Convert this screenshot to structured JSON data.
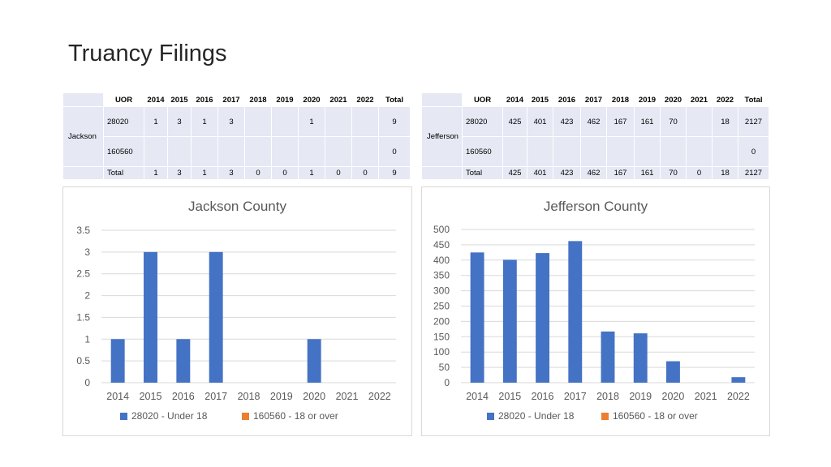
{
  "title": "Truancy Filings",
  "tables": {
    "jackson": {
      "county": "Jackson",
      "headers": [
        "UOR",
        "2014",
        "2015",
        "2016",
        "2017",
        "2018",
        "2019",
        "2020",
        "2021",
        "2022",
        "Total"
      ],
      "rows": [
        {
          "uor": "28020",
          "cells": [
            "1",
            "3",
            "1",
            "3",
            "",
            "",
            "1",
            "",
            "",
            "9"
          ]
        },
        {
          "uor": "160560",
          "cells": [
            "",
            "",
            "",
            "",
            "",
            "",
            "",
            "",
            "",
            "0"
          ]
        }
      ],
      "total_row": {
        "label": "Total",
        "cells": [
          "1",
          "3",
          "1",
          "3",
          "0",
          "0",
          "1",
          "0",
          "0",
          "9"
        ]
      }
    },
    "jefferson": {
      "county": "Jefferson",
      "headers": [
        "UOR",
        "2014",
        "2015",
        "2016",
        "2017",
        "2018",
        "2019",
        "2020",
        "2021",
        "2022",
        "Total"
      ],
      "rows": [
        {
          "uor": "28020",
          "cells": [
            "425",
            "401",
            "423",
            "462",
            "167",
            "161",
            "70",
            "",
            "18",
            "2127"
          ]
        },
        {
          "uor": "160560",
          "cells": [
            "",
            "",
            "",
            "",
            "",
            "",
            "",
            "",
            "",
            "0"
          ]
        }
      ],
      "total_row": {
        "label": "Total",
        "cells": [
          "425",
          "401",
          "423",
          "462",
          "167",
          "161",
          "70",
          "0",
          "18",
          "2127"
        ]
      }
    }
  },
  "colors": {
    "series_1": "#4472c4",
    "series_2": "#ed7d31",
    "grid": "#d9d9d9",
    "table_fill": "#e6e8f4"
  },
  "chart_data": [
    {
      "type": "bar",
      "title": "Jackson County",
      "categories": [
        "2014",
        "2015",
        "2016",
        "2017",
        "2018",
        "2019",
        "2020",
        "2021",
        "2022"
      ],
      "series": [
        {
          "name": "28020 - Under 18",
          "values": [
            1,
            3,
            1,
            3,
            0,
            0,
            1,
            0,
            0
          ]
        },
        {
          "name": "160560 - 18 or over",
          "values": [
            0,
            0,
            0,
            0,
            0,
            0,
            0,
            0,
            0
          ]
        }
      ],
      "ylim": [
        0,
        3.5
      ],
      "yticks": [
        "0",
        "0.5",
        "1",
        "1.5",
        "2",
        "2.5",
        "3",
        "3.5"
      ],
      "grid": true,
      "legend": "bottom"
    },
    {
      "type": "bar",
      "title": "Jefferson County",
      "categories": [
        "2014",
        "2015",
        "2016",
        "2017",
        "2018",
        "2019",
        "2020",
        "2021",
        "2022"
      ],
      "series": [
        {
          "name": "28020 - Under 18",
          "values": [
            425,
            401,
            423,
            462,
            167,
            161,
            70,
            0,
            18
          ]
        },
        {
          "name": "160560 - 18 or over",
          "values": [
            0,
            0,
            0,
            0,
            0,
            0,
            0,
            0,
            0
          ]
        }
      ],
      "ylim": [
        0,
        500
      ],
      "yticks": [
        "0",
        "50",
        "100",
        "150",
        "200",
        "250",
        "300",
        "350",
        "400",
        "450",
        "500"
      ],
      "grid": true,
      "legend": "bottom"
    }
  ]
}
